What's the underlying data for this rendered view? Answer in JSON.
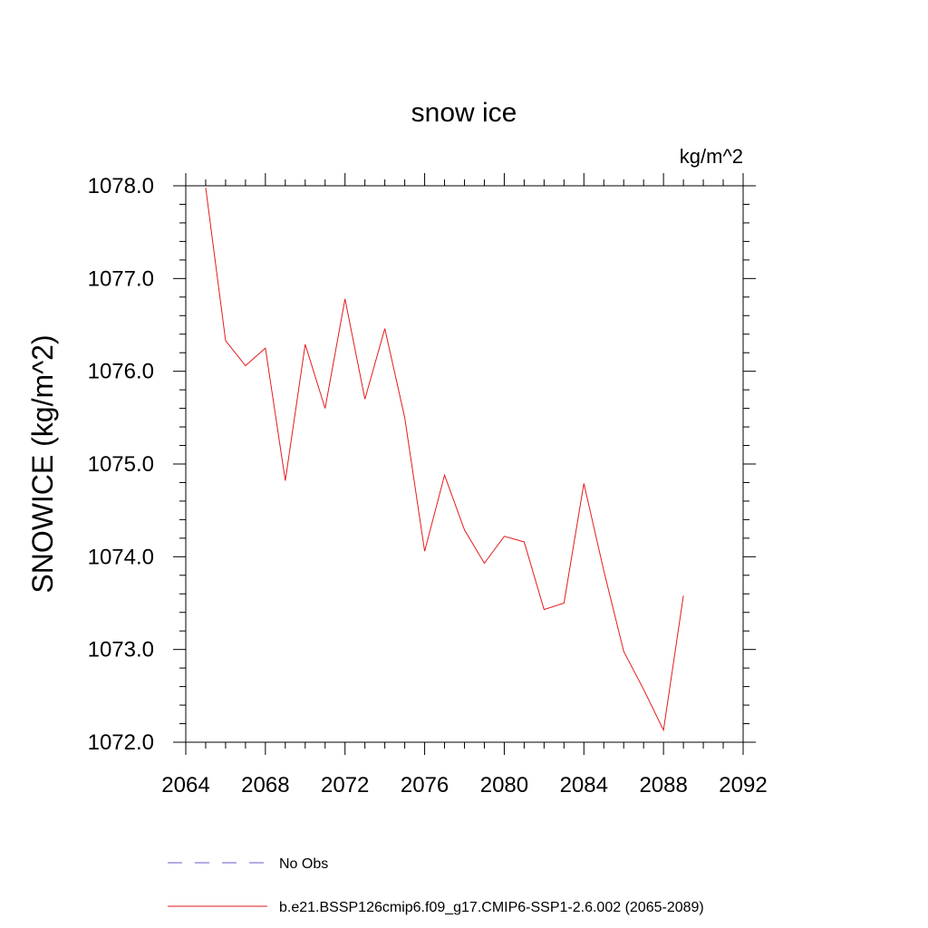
{
  "chart_data": {
    "type": "line",
    "title": "snow ice",
    "units": "kg/m^2",
    "ylabel": "SNOWICE  (kg/m^2)",
    "xlabel": "",
    "xlim": [
      2064,
      2092
    ],
    "ylim": [
      1072.0,
      1078.0
    ],
    "xticks": [
      2064,
      2068,
      2072,
      2076,
      2080,
      2084,
      2088,
      2092
    ],
    "yticks": [
      1072.0,
      1073.0,
      1074.0,
      1075.0,
      1076.0,
      1077.0,
      1078.0
    ],
    "ytick_labels": [
      "1072.0",
      "1073.0",
      "1074.0",
      "1075.0",
      "1076.0",
      "1077.0",
      "1078.0"
    ],
    "xtick_labels": [
      "2064",
      "2068",
      "2072",
      "2076",
      "2080",
      "2084",
      "2088",
      "2092"
    ],
    "grid": false,
    "legend_placement": "bottom",
    "series": [
      {
        "name": "b.e21.BSSP126cmip6.f09_g17.CMIP6-SSP1-2.6.002 (2065-2089)",
        "color": "#e41a1c",
        "style": "solid",
        "x": [
          2065,
          2066,
          2067,
          2068,
          2069,
          2070,
          2071,
          2072,
          2073,
          2074,
          2075,
          2076,
          2077,
          2078,
          2079,
          2080,
          2081,
          2082,
          2083,
          2084,
          2085,
          2086,
          2087,
          2088,
          2089
        ],
        "y": [
          1077.98,
          1076.33,
          1076.06,
          1076.25,
          1074.82,
          1076.29,
          1075.6,
          1076.78,
          1075.7,
          1076.46,
          1075.5,
          1074.06,
          1074.88,
          1074.29,
          1073.93,
          1074.22,
          1074.16,
          1073.43,
          1073.5,
          1074.79,
          1073.85,
          1072.98,
          1072.57,
          1072.13,
          1073.58
        ]
      }
    ],
    "legend": [
      {
        "label": "No Obs",
        "color": "#6a5acd",
        "style": "dashed"
      },
      {
        "label": "b.e21.BSSP126cmip6.f09_g17.CMIP6-SSP1-2.6.002 (2065-2089)",
        "color": "#e41a1c",
        "style": "solid"
      }
    ]
  }
}
